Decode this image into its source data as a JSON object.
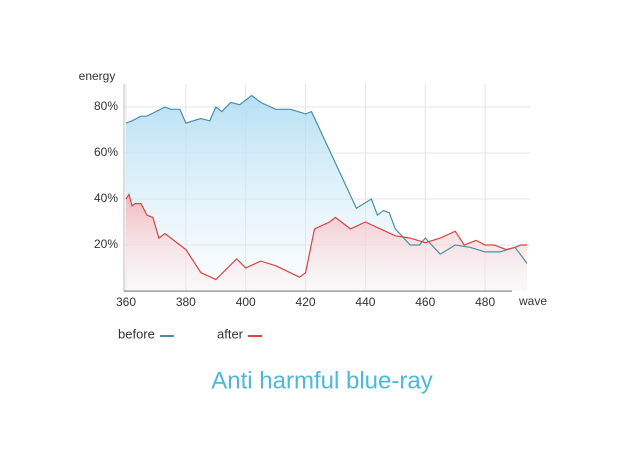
{
  "chart_data": {
    "type": "line",
    "title": "Anti harmful blue-ray",
    "x_label": "wave",
    "y_label": "energy",
    "xlim": [
      360,
      495
    ],
    "xticks": [
      360,
      380,
      400,
      420,
      440,
      460,
      480
    ],
    "ylim": [
      0,
      90
    ],
    "yticks": [
      {
        "value": 20,
        "label": "20%"
      },
      {
        "value": 40,
        "label": "40%"
      },
      {
        "value": 60,
        "label": "60%"
      },
      {
        "value": 80,
        "label": "80%"
      }
    ],
    "grid": true,
    "series": [
      {
        "name": "before",
        "color": "#4a8fa8",
        "x": [
          360,
          362,
          365,
          367,
          370,
          373,
          375,
          378,
          380,
          385,
          388,
          390,
          392,
          395,
          398,
          402,
          405,
          410,
          415,
          420,
          422,
          437,
          442,
          444,
          446,
          448,
          450,
          455,
          458,
          460,
          465,
          470,
          475,
          480,
          485,
          490,
          494
        ],
        "values": [
          73,
          74,
          76,
          76,
          78,
          80,
          79,
          79,
          73,
          75,
          74,
          80,
          78,
          82,
          81,
          85,
          82,
          79,
          79,
          77,
          78,
          36,
          40,
          33,
          35,
          34,
          27,
          20,
          20,
          23,
          16,
          20,
          19,
          17,
          17,
          19,
          12
        ]
      },
      {
        "name": "after",
        "color": "#d94444",
        "x": [
          360,
          361,
          362,
          363,
          365,
          367,
          369,
          371,
          373,
          380,
          385,
          390,
          397,
          400,
          405,
          410,
          418,
          420,
          423,
          428,
          430,
          435,
          440,
          445,
          450,
          455,
          460,
          465,
          470,
          473,
          477,
          480,
          483,
          487,
          490,
          492,
          494
        ],
        "values": [
          40,
          42,
          37,
          38,
          38,
          33,
          32,
          23,
          25,
          18,
          8,
          5,
          14,
          10,
          13,
          11,
          6,
          8,
          27,
          30,
          32,
          27,
          30,
          27,
          24,
          23,
          21,
          23,
          26,
          20,
          22,
          20,
          20,
          18,
          19,
          20,
          20
        ]
      }
    ]
  }
}
